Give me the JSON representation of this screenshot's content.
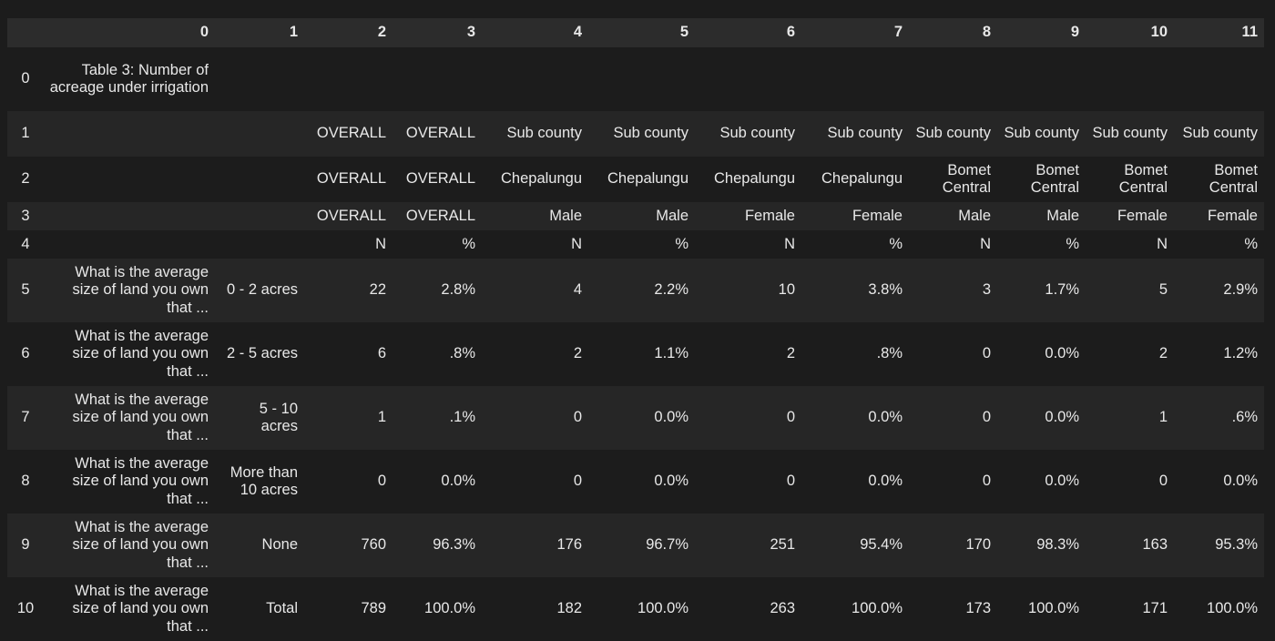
{
  "columns": [
    "0",
    "1",
    "2",
    "3",
    "4",
    "5",
    "6",
    "7",
    "8",
    "9",
    "10",
    "11"
  ],
  "rows": [
    {
      "index": "0",
      "cells": [
        "Table 3: Number of acreage under irrigation",
        "",
        "",
        "",
        "",
        "",
        "",
        "",
        "",
        "",
        "",
        ""
      ]
    },
    {
      "index": "1",
      "cells": [
        "",
        "",
        "OVERALL",
        "OVERALL",
        "Sub county",
        "Sub county",
        "Sub county",
        "Sub county",
        "Sub county",
        "Sub county",
        "Sub county",
        "Sub county"
      ]
    },
    {
      "index": "2",
      "cells": [
        "",
        "",
        "OVERALL",
        "OVERALL",
        "Chepalungu",
        "Chepalungu",
        "Chepalungu",
        "Chepalungu",
        "Bomet Central",
        "Bomet Central",
        "Bomet Central",
        "Bomet Central"
      ]
    },
    {
      "index": "3",
      "cells": [
        "",
        "",
        "OVERALL",
        "OVERALL",
        "Male",
        "Male",
        "Female",
        "Female",
        "Male",
        "Male",
        "Female",
        "Female"
      ]
    },
    {
      "index": "4",
      "cells": [
        "",
        "",
        "N",
        "%",
        "N",
        "%",
        "N",
        "%",
        "N",
        "%",
        "N",
        "%"
      ]
    },
    {
      "index": "5",
      "cells": [
        "What is the average size of land you own that ...",
        "0 - 2 acres",
        "22",
        "2.8%",
        "4",
        "2.2%",
        "10",
        "3.8%",
        "3",
        "1.7%",
        "5",
        "2.9%"
      ]
    },
    {
      "index": "6",
      "cells": [
        "What is the average size of land you own that ...",
        "2 - 5 acres",
        "6",
        ".8%",
        "2",
        "1.1%",
        "2",
        ".8%",
        "0",
        "0.0%",
        "2",
        "1.2%"
      ]
    },
    {
      "index": "7",
      "cells": [
        "What is the average size of land you own that ...",
        "5 - 10 acres",
        "1",
        ".1%",
        "0",
        "0.0%",
        "0",
        "0.0%",
        "0",
        "0.0%",
        "1",
        ".6%"
      ]
    },
    {
      "index": "8",
      "cells": [
        "What is the average size of land you own that ...",
        "More than 10 acres",
        "0",
        "0.0%",
        "0",
        "0.0%",
        "0",
        "0.0%",
        "0",
        "0.0%",
        "0",
        "0.0%"
      ]
    },
    {
      "index": "9",
      "cells": [
        "What is the average size of land you own that ...",
        "None",
        "760",
        "96.3%",
        "176",
        "96.7%",
        "251",
        "95.4%",
        "170",
        "98.3%",
        "163",
        "95.3%"
      ]
    },
    {
      "index": "10",
      "cells": [
        "What is the average size of land you own that ...",
        "Total",
        "789",
        "100.0%",
        "182",
        "100.0%",
        "263",
        "100.0%",
        "173",
        "100.0%",
        "171",
        "100.0%"
      ]
    }
  ]
}
